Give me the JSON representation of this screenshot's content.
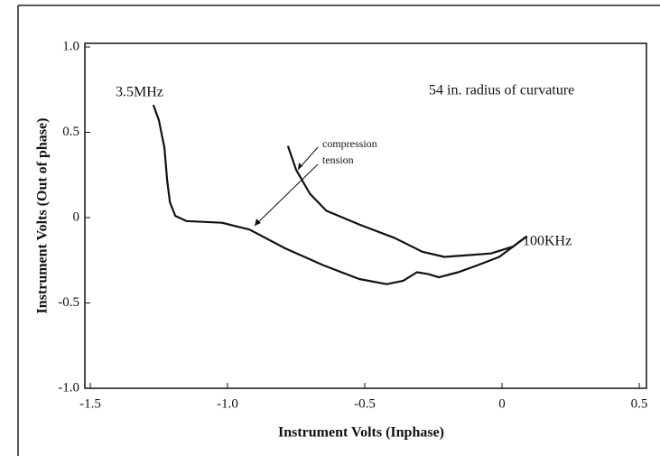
{
  "chart_data": {
    "type": "line",
    "xlabel": "Instrument Volts (Inphase)",
    "ylabel": "Instrument Volts (Out of phase)",
    "annotations": [
      "3.5MHz",
      "100KHz",
      "54 in. radius of curvature"
    ],
    "xlim": [
      -1.5,
      0.5
    ],
    "ylim": [
      -1,
      1
    ],
    "xticks": [
      -1.5,
      {
        "value": -1,
        "label": "-1.0"
      },
      -0.5,
      0,
      0.5
    ],
    "yticks": [
      {
        "value": -1,
        "label": "-1.0"
      },
      -0.5,
      0,
      0.5,
      {
        "value": 1,
        "label": "1.0"
      }
    ],
    "series": [
      {
        "name": "compression",
        "color": "#111111",
        "x": [
          -0.78,
          -0.75,
          -0.7,
          -0.64,
          -0.52,
          -0.39,
          -0.29,
          -0.21,
          -0.04,
          0.04,
          0.09
        ],
        "values": [
          0.42,
          0.28,
          0.14,
          0.04,
          -0.04,
          -0.12,
          -0.2,
          -0.23,
          -0.21,
          -0.17,
          -0.11
        ]
      },
      {
        "name": "tension",
        "color": "#111111",
        "x": [
          -1.27,
          -1.25,
          -1.23,
          -1.22,
          -1.21,
          -1.19,
          -1.15,
          -1.02,
          -0.92,
          -0.79,
          -0.65,
          -0.52,
          -0.42,
          -0.36,
          -0.31,
          -0.27,
          -0.23,
          -0.16,
          -0.09,
          -0.01,
          0.09
        ],
        "values": [
          0.66,
          0.57,
          0.41,
          0.22,
          0.09,
          0.01,
          -0.02,
          -0.03,
          -0.07,
          -0.18,
          -0.28,
          -0.36,
          -0.39,
          -0.37,
          -0.32,
          -0.33,
          -0.35,
          -0.32,
          -0.28,
          -0.23,
          -0.11
        ]
      }
    ]
  }
}
